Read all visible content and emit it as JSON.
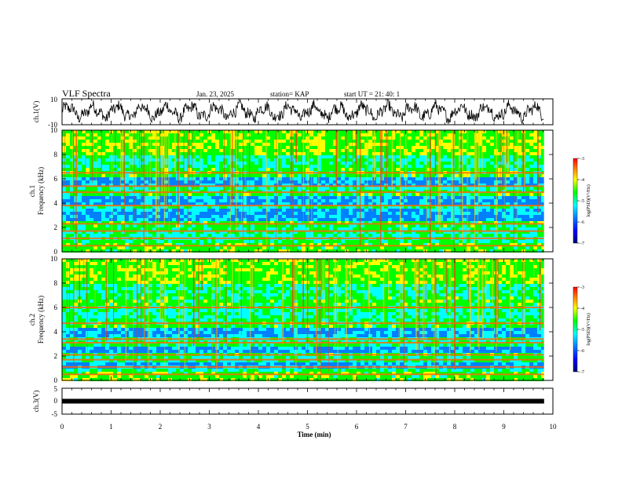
{
  "header": {
    "title": "VLF Spectra",
    "date": "Jan. 23, 2025",
    "station": "station= KAP",
    "start": "start UT =  21: 40: 1"
  },
  "chart_data": [
    {
      "type": "line",
      "panel": "ch1-waveform",
      "ylabel": "ch.1(V)",
      "ylim": [
        -10,
        10
      ],
      "yticks": [
        "10",
        "-10"
      ],
      "xlim": [
        0,
        10
      ],
      "data_end_min": 9.82
    },
    {
      "type": "heatmap",
      "panel": "ch1-spectrogram",
      "ylabel": "ch.1\nFrequency (kHz)",
      "ylim": [
        0,
        10
      ],
      "yticks": [
        "0",
        "2",
        "4",
        "6",
        "8",
        "10"
      ],
      "xlim": [
        0,
        10
      ],
      "data_end_min": 9.82,
      "colorbar": {
        "label": "log(PSD)(V²/Hz)",
        "range": [
          -7,
          -3
        ],
        "ticks": [
          "-3",
          "-4",
          "-5",
          "-6",
          "-7"
        ]
      },
      "emission_lines_khz": [
        0.5,
        1.1,
        1.7,
        2.3,
        3.8,
        4.9,
        5.4,
        6.5
      ],
      "low_power_bands_khz": [
        [
          2.7,
          3.6
        ],
        [
          4.0,
          4.6
        ],
        [
          5.5,
          6.2
        ]
      ]
    },
    {
      "type": "heatmap",
      "panel": "ch2-spectrogram",
      "ylabel": "ch.2\nFrequency (kHz)",
      "ylim": [
        0,
        10
      ],
      "yticks": [
        "0",
        "2",
        "4",
        "6",
        "8",
        "10"
      ],
      "xlim": [
        0,
        10
      ],
      "data_end_min": 9.82,
      "colorbar": {
        "label": "log(PSD)(V²/Hz)",
        "range": [
          -7,
          -3
        ],
        "ticks": [
          "-3",
          "-4",
          "-5",
          "-6",
          "-7"
        ]
      },
      "emission_lines_khz": [
        0.5,
        1.1,
        1.7,
        2.1,
        3.1,
        3.4,
        4.7,
        6.0
      ],
      "low_power_bands_khz": [
        [
          2.4,
          2.9
        ],
        [
          3.6,
          4.4
        ],
        [
          1.2,
          1.5
        ]
      ]
    },
    {
      "type": "line",
      "panel": "ch3-waveform",
      "ylabel": "ch.3(V)",
      "ylim": [
        -5,
        5
      ],
      "yticks": [
        "5",
        "0",
        "-5"
      ],
      "xlim": [
        0,
        10
      ],
      "data_end_min": 9.82,
      "level_v": 0.0
    },
    {
      "type": "axis",
      "panel": "time-axis",
      "xlabel": "Time (min)",
      "xticks": [
        "0",
        "1",
        "2",
        "3",
        "4",
        "5",
        "6",
        "7",
        "8",
        "9",
        "10"
      ]
    }
  ],
  "colors": {
    "scale": [
      "#00007a",
      "#0000ff",
      "#0080ff",
      "#00ffff",
      "#00ff00",
      "#ffff00",
      "#ff8000",
      "#ff0000"
    ]
  }
}
